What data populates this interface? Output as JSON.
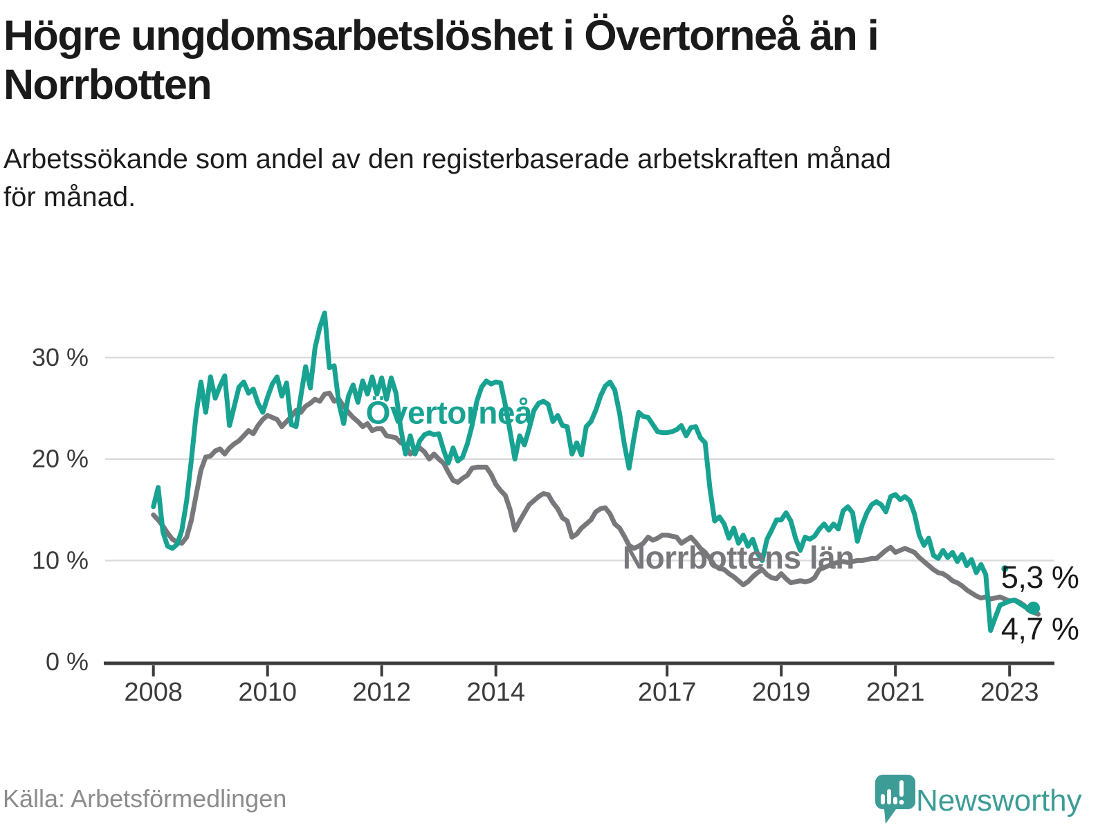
{
  "header": {
    "title": "Högre ungdomsarbetslöshet i Övertorneå än i\nNorrbotten",
    "subtitle": "Arbetssökande som andel av den registerbaserade arbetskraften månad\nför månad."
  },
  "footer": {
    "source": "Källa: Arbetsförmedlingen",
    "brand_name": "Newsworthy"
  },
  "colors": {
    "accent_teal": "#18a292",
    "series_gray": "#78787c",
    "grid": "#dbdbdb",
    "axis": "#3b3b3b",
    "axis_text": "#3b3b3b",
    "annotation_text": "#1a1a1a",
    "brand_teal": "#3d9c96",
    "background": "#ffffff"
  },
  "chart_data": {
    "type": "line",
    "title": "Högre ungdomsarbetslöshet i Övertorneå än i Norrbotten",
    "xlabel": "",
    "ylabel": "Arbetssökande som andel av den registerbaserade arbetskraften",
    "x_start_year": 2008,
    "x_step_months": 1,
    "x_ticks": [
      2008,
      2010,
      2012,
      2014,
      2017,
      2019,
      2021,
      2023
    ],
    "y_ticks": [
      {
        "v": 0,
        "label": "0 %"
      },
      {
        "v": 10,
        "label": "10 %"
      },
      {
        "v": 20,
        "label": "20 %"
      },
      {
        "v": 30,
        "label": "30 %"
      }
    ],
    "ylim": [
      0,
      35.5
    ],
    "xlim": [
      2007.9,
      2023.6
    ],
    "grid": "horizontal",
    "legend_position": "inline-labels",
    "series": [
      {
        "name": "Övertorneå",
        "color": "#18a292",
        "end_value_label": "5,3 %",
        "values": [
          15.3,
          17.2,
          12.8,
          11.4,
          11.2,
          11.6,
          13.0,
          15.9,
          20.0,
          24.5,
          27.6,
          24.6,
          28.1,
          26.0,
          27.2,
          28.2,
          23.3,
          25.2,
          27.1,
          27.6,
          26.5,
          26.9,
          25.5,
          24.6,
          26.1,
          27.4,
          28.1,
          26.2,
          27.5,
          23.4,
          23.2,
          26.2,
          29.1,
          27.0,
          31.0,
          33.0,
          34.4,
          29.0,
          29.2,
          25.5,
          23.5,
          26.2,
          27.3,
          25.6,
          27.7,
          26.4,
          28.1,
          26.4,
          28.0,
          25.9,
          28.0,
          26.5,
          23.0,
          20.5,
          22.3,
          20.5,
          21.8,
          22.4,
          22.6,
          22.4,
          22.5,
          20.9,
          19.6,
          21.1,
          19.8,
          20.2,
          21.5,
          23.3,
          25.7,
          27.1,
          27.7,
          27.4,
          27.6,
          27.5,
          25.3,
          22.7,
          20.0,
          22.3,
          21.4,
          23.0,
          24.8,
          25.5,
          25.7,
          25.4,
          23.7,
          24.3,
          23.3,
          23.2,
          20.5,
          21.6,
          20.4,
          23.2,
          23.7,
          24.8,
          26.2,
          27.2,
          27.6,
          26.8,
          24.5,
          21.5,
          19.1,
          22.0,
          24.6,
          24.2,
          24.1,
          23.4,
          22.7,
          22.6,
          22.6,
          22.7,
          22.9,
          23.3,
          22.3,
          23.1,
          23.2,
          22.1,
          21.6,
          17.1,
          13.9,
          14.3,
          13.6,
          12.2,
          13.2,
          11.7,
          12.5,
          11.4,
          12.1,
          10.7,
          10.0,
          12.1,
          13.0,
          14.0,
          14.0,
          14.7,
          13.9,
          12.2,
          11.0,
          12.3,
          12.1,
          12.4,
          13.1,
          13.6,
          13.0,
          13.6,
          13.1,
          14.9,
          15.3,
          14.7,
          11.9,
          13.5,
          14.7,
          15.5,
          15.8,
          15.5,
          14.8,
          16.3,
          16.5,
          16.0,
          16.3,
          15.9,
          14.6,
          12.5,
          11.5,
          12.2,
          10.5,
          10.2,
          11.0,
          10.3,
          10.8,
          9.9,
          10.6,
          9.5,
          10.1,
          8.8,
          9.6,
          8.6,
          3.1,
          4.4,
          5.6,
          null,
          6.0,
          6.1,
          5.8,
          5.5,
          5.2,
          5.3
        ]
      },
      {
        "name": "Norrbottens län",
        "color": "#78787c",
        "end_value_label": "4,7 %",
        "values": [
          14.5,
          14.0,
          13.4,
          12.7,
          12.1,
          11.8,
          11.7,
          12.3,
          14.0,
          16.5,
          18.9,
          20.2,
          20.3,
          20.8,
          21.0,
          20.5,
          21.1,
          21.5,
          21.8,
          22.3,
          22.8,
          22.5,
          23.3,
          23.9,
          24.3,
          24.1,
          23.9,
          23.2,
          23.7,
          24.2,
          24.8,
          24.6,
          25.2,
          25.5,
          25.9,
          25.7,
          26.4,
          26.5,
          25.7,
          25.9,
          25.2,
          24.6,
          24.1,
          23.7,
          23.2,
          23.5,
          22.8,
          23.0,
          23.0,
          22.3,
          22.2,
          22.1,
          21.6,
          21.4,
          20.5,
          20.8,
          21.1,
          20.7,
          20.0,
          20.5,
          20.0,
          19.6,
          18.7,
          17.9,
          17.7,
          18.1,
          18.4,
          19.1,
          19.2,
          19.2,
          19.2,
          18.5,
          17.5,
          16.9,
          16.4,
          15.0,
          13.0,
          13.9,
          14.7,
          15.5,
          15.9,
          16.3,
          16.6,
          16.5,
          15.7,
          15.1,
          14.2,
          13.9,
          12.3,
          12.6,
          13.2,
          13.6,
          14.0,
          14.8,
          15.1,
          15.2,
          14.6,
          13.6,
          13.2,
          12.4,
          11.5,
          11.2,
          11.4,
          11.7,
          12.3,
          12.0,
          12.2,
          12.5,
          12.5,
          12.4,
          12.3,
          11.7,
          12.0,
          12.3,
          11.8,
          11.2,
          10.8,
          10.2,
          9.5,
          9.2,
          9.1,
          8.7,
          8.4,
          8.0,
          7.6,
          7.9,
          8.4,
          8.8,
          9.1,
          8.6,
          8.3,
          8.2,
          8.7,
          8.2,
          7.8,
          7.9,
          8.0,
          7.9,
          8.0,
          8.3,
          9.1,
          9.3,
          9.5,
          9.7,
          9.8,
          9.9,
          9.8,
          9.9,
          10.0,
          10.0,
          10.1,
          10.2,
          10.2,
          10.6,
          11.0,
          11.3,
          10.8,
          11.0,
          11.2,
          11.0,
          10.8,
          10.3,
          9.9,
          9.5,
          9.1,
          8.8,
          8.7,
          8.4,
          8.0,
          7.8,
          7.5,
          7.1,
          6.8,
          6.5,
          6.3,
          6.4,
          6.2,
          6.3,
          6.4,
          6.2,
          6.0,
          6.1,
          5.9,
          5.6,
          5.1,
          4.9,
          4.7
        ]
      }
    ],
    "markers": [
      {
        "series": 0,
        "x": 2022.917,
        "y": 9.2,
        "r": 5,
        "name": "isolated-point"
      },
      {
        "series": 0,
        "x": 2023.417,
        "y": 5.3,
        "r": 9.5,
        "name": "end-point"
      }
    ],
    "annotations": [
      {
        "text": "Övertorneå",
        "x": 2011.72,
        "y": 23.5,
        "color": "#18a292",
        "bold": true,
        "size": 46
      },
      {
        "text": "Norrbottens län",
        "x": 2016.22,
        "y": 9.2,
        "color": "#78787c",
        "bold": true,
        "size": 46
      },
      {
        "text": "5,3 %",
        "x": 2022.85,
        "y": 7.3,
        "color": "#1a1a1a",
        "bold": false,
        "size": 45
      },
      {
        "text": "4,7 %",
        "x": 2022.85,
        "y": 2.2,
        "color": "#1a1a1a",
        "bold": false,
        "size": 45
      }
    ]
  }
}
